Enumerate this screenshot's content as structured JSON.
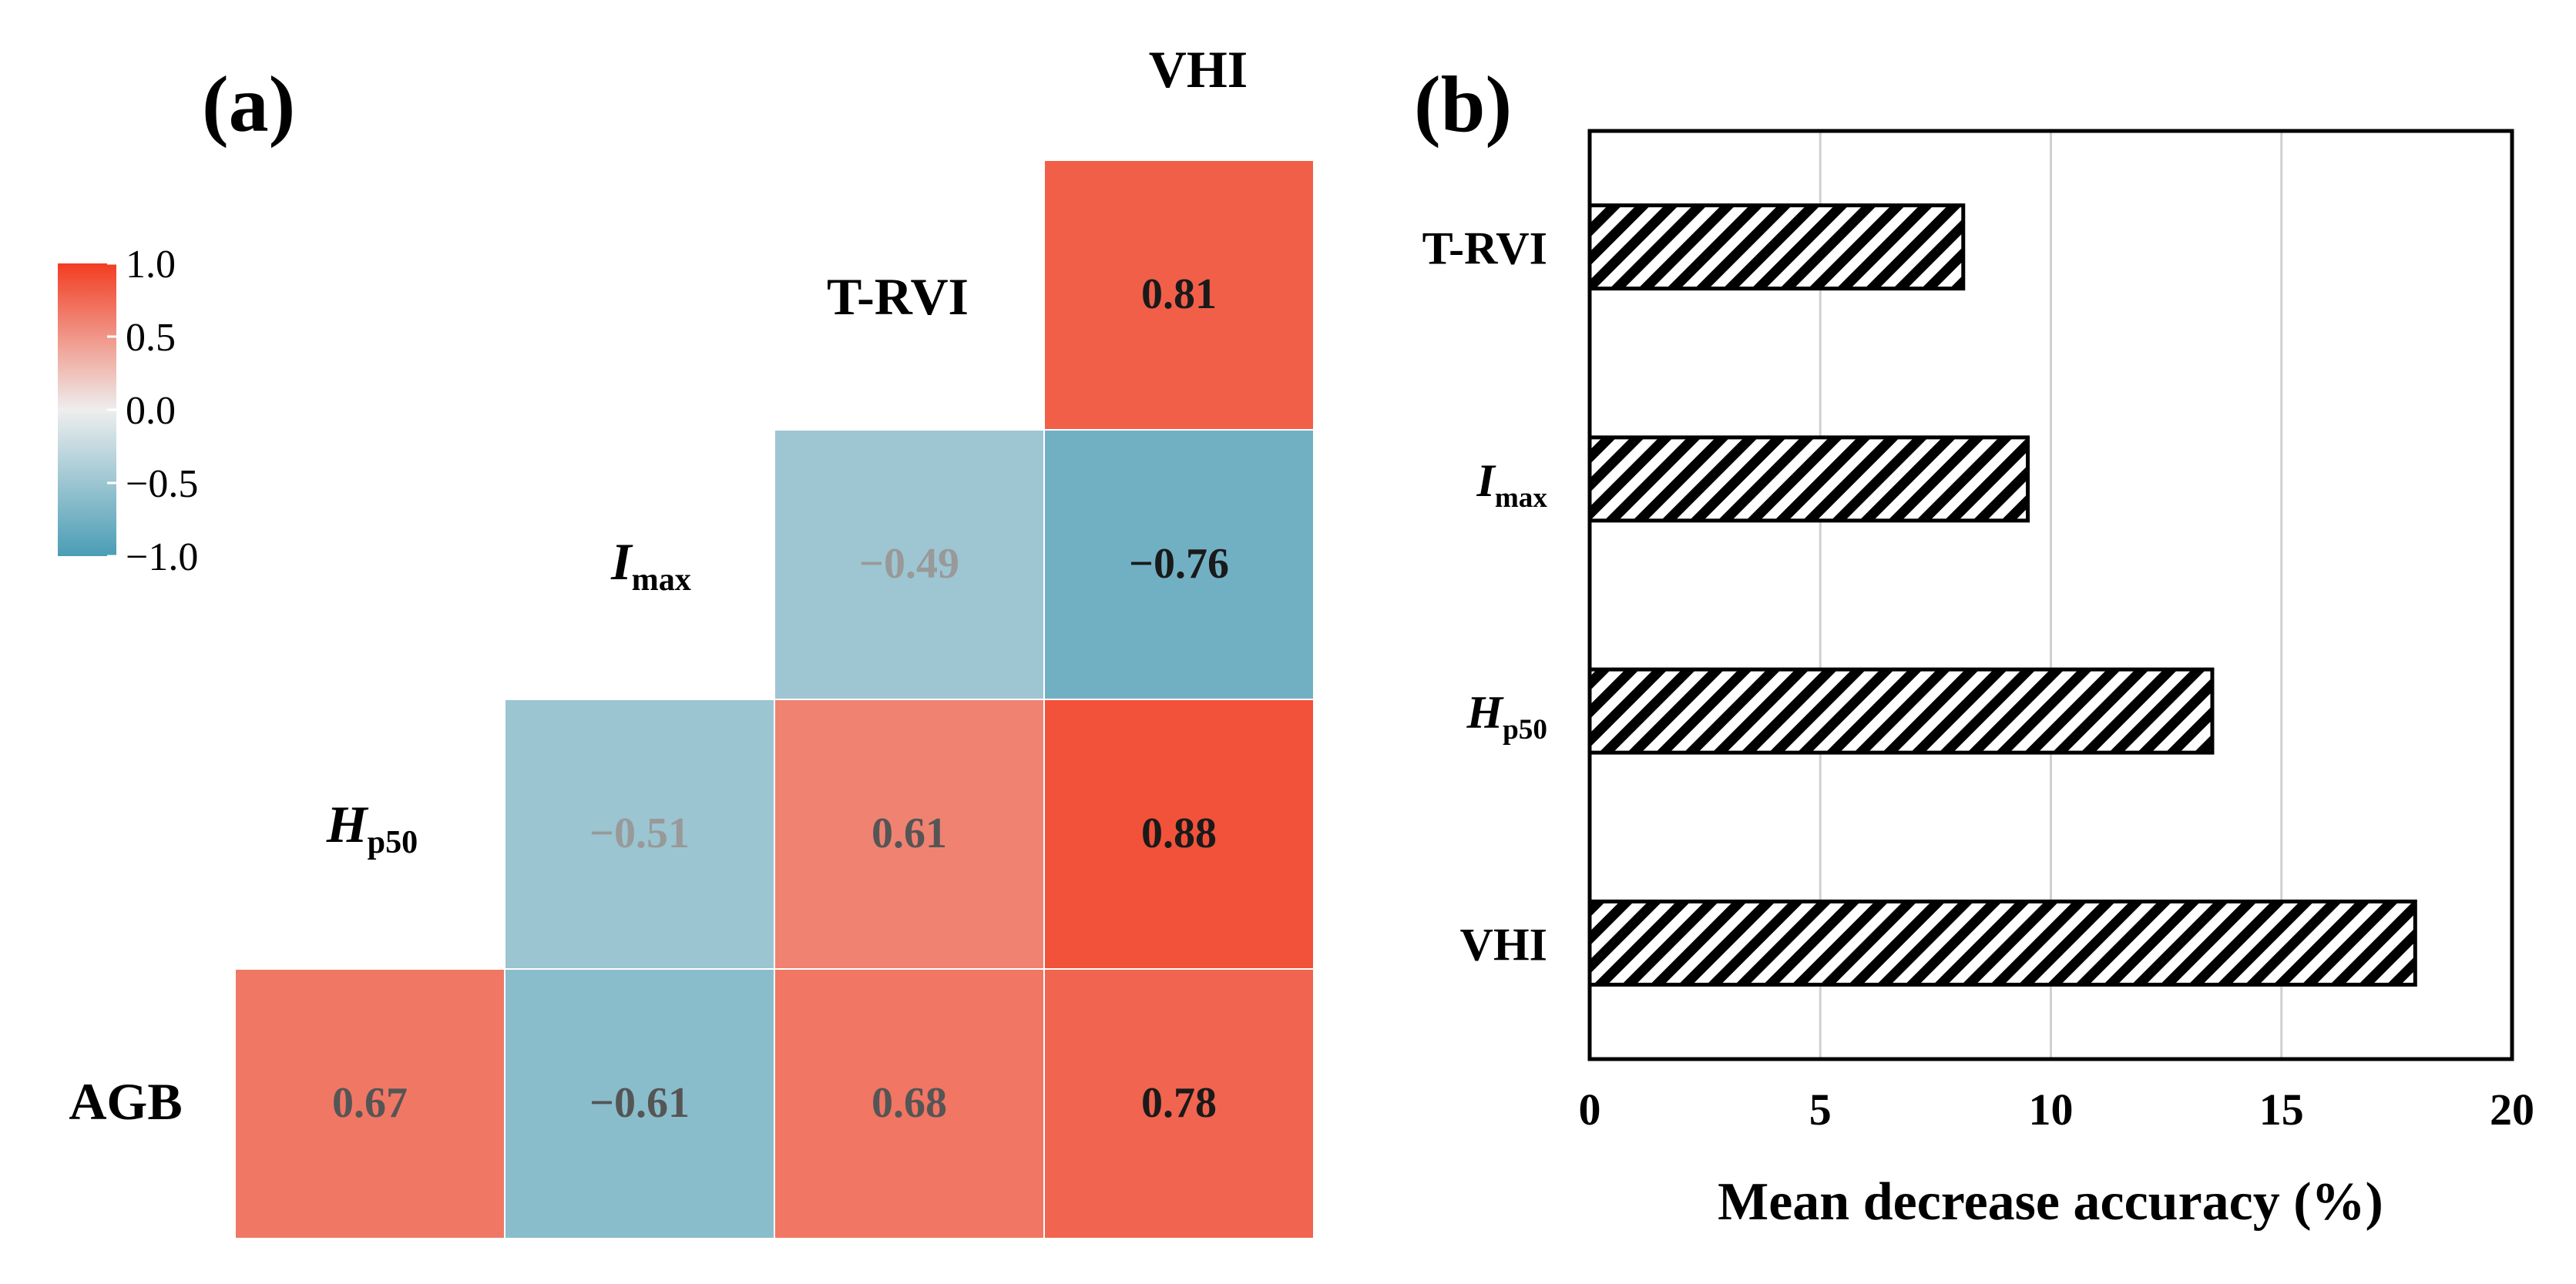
{
  "chart_data": [
    {
      "panel": "(a)",
      "type": "heatmap",
      "title": "",
      "variables": [
        {
          "id": "AGB",
          "base": "AGB",
          "sub": ""
        },
        {
          "id": "Hp50",
          "base": "H",
          "sub": "p50"
        },
        {
          "id": "Imax",
          "base": "I",
          "sub": "max"
        },
        {
          "id": "T-RVI",
          "base": "T-RVI",
          "sub": ""
        },
        {
          "id": "VHI",
          "base": "VHI",
          "sub": ""
        }
      ],
      "cells": [
        {
          "row": "T-RVI",
          "col": "VHI",
          "value": 0.81,
          "label": "0.81"
        },
        {
          "row": "Imax",
          "col": "T-RVI",
          "value": -0.49,
          "label": "−0.49"
        },
        {
          "row": "Imax",
          "col": "VHI",
          "value": -0.76,
          "label": "−0.76"
        },
        {
          "row": "Hp50",
          "col": "Imax",
          "value": -0.51,
          "label": "−0.51"
        },
        {
          "row": "Hp50",
          "col": "T-RVI",
          "value": 0.61,
          "label": "0.61"
        },
        {
          "row": "Hp50",
          "col": "VHI",
          "value": 0.88,
          "label": "0.88"
        },
        {
          "row": "AGB",
          "col": "Hp50",
          "value": 0.67,
          "label": "0.67"
        },
        {
          "row": "AGB",
          "col": "Imax",
          "value": -0.61,
          "label": "−0.61"
        },
        {
          "row": "AGB",
          "col": "T-RVI",
          "value": 0.68,
          "label": "0.68"
        },
        {
          "row": "AGB",
          "col": "VHI",
          "value": 0.78,
          "label": "0.78"
        }
      ],
      "colorbar": {
        "range": [
          -1.0,
          1.0
        ],
        "ticks": [
          1.0,
          0.5,
          0.0,
          -0.5,
          -1.0
        ],
        "tick_labels": [
          "1.0",
          "0.5",
          "0.0",
          "−0.5",
          "−1.0"
        ],
        "colors": {
          "negative": "#4a9db5",
          "zero": "#eeeeee",
          "positive": "#f23d22"
        }
      }
    },
    {
      "panel": "(b)",
      "type": "bar",
      "orientation": "horizontal",
      "categories": [
        {
          "base": "T-RVI",
          "sub": ""
        },
        {
          "base": "I",
          "sub": "max"
        },
        {
          "base": "H",
          "sub": "p50"
        },
        {
          "base": "VHI",
          "sub": ""
        }
      ],
      "values": [
        8.1,
        9.5,
        13.5,
        17.9
      ],
      "xlabel": "Mean decrease accuracy (%)",
      "ylabel": "",
      "xlim": [
        0,
        20
      ],
      "xticks": [
        0,
        5,
        10,
        15,
        20
      ],
      "xtick_labels": [
        "0",
        "5",
        "10",
        "15",
        "20"
      ],
      "grid": true,
      "bar_fill": "diagonal-hatch",
      "bar_colors": {
        "fill": "#ffffff",
        "hatch": "#000000"
      }
    }
  ]
}
